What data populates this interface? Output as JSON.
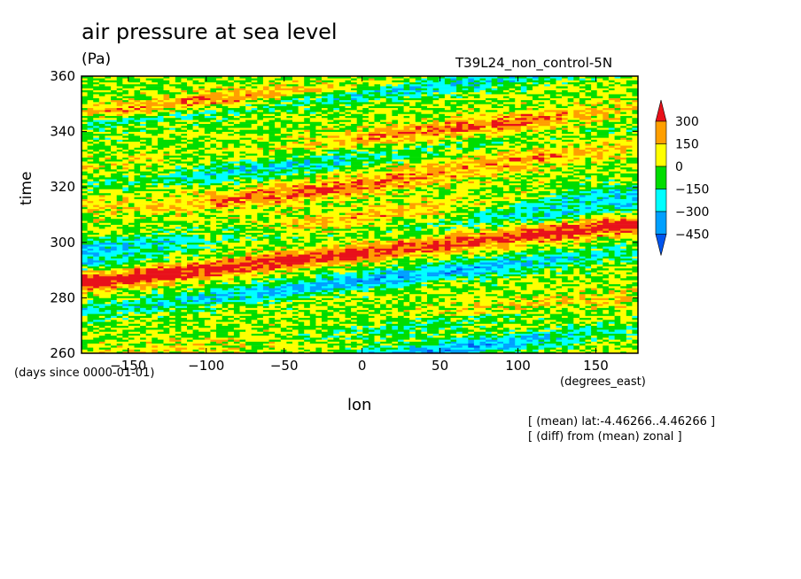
{
  "chart_data": {
    "type": "heatmap",
    "title": "air pressure at sea level",
    "units": "(Pa)",
    "run_label": "T39L24_non_control-5N",
    "xlabel": "lon",
    "xunits": "(degrees_east)",
    "ylabel": "time",
    "yunits": "(days since 0000-01-01)",
    "xlim": [
      -180,
      177
    ],
    "ylim": [
      260,
      360
    ],
    "xticks": [
      -150,
      -100,
      -50,
      0,
      50,
      100,
      150
    ],
    "yticks": [
      260,
      280,
      300,
      320,
      340,
      360
    ],
    "notes": [
      "[ (mean) lat:-4.46266..4.46266 ]",
      "[ (diff) from (mean) zonal ]"
    ],
    "colorbar": {
      "levels": [
        300,
        150,
        0,
        -150,
        -300,
        -450
      ],
      "colors": [
        "#e8111a",
        "#ff9f00",
        "#ffff00",
        "#00dd00",
        "#00ffff",
        "#00a0ff",
        "#0055ee"
      ]
    },
    "anomaly_bands": [
      {
        "time": 350,
        "lon_center": -110,
        "value": 320
      },
      {
        "time": 342,
        "lon_center": 70,
        "value": 310
      },
      {
        "time": 330,
        "lon_center": 100,
        "value": 200
      },
      {
        "time": 318,
        "lon_center": -40,
        "value": 300
      },
      {
        "time": 310,
        "lon_center": 10,
        "value": 200
      },
      {
        "time": 303,
        "lon_center": 110,
        "value": 280
      },
      {
        "time": 294,
        "lon_center": -40,
        "value": 310
      },
      {
        "time": 287,
        "lon_center": -150,
        "value": 250
      },
      {
        "time": 276,
        "lon_center": 100,
        "value": 200
      },
      {
        "time": 265,
        "lon_center": -50,
        "value": 150
      },
      {
        "time": 356,
        "lon_center": 40,
        "value": -250
      },
      {
        "time": 345,
        "lon_center": -150,
        "value": -200
      },
      {
        "time": 327,
        "lon_center": -60,
        "value": -250
      },
      {
        "time": 312,
        "lon_center": 140,
        "value": -220
      },
      {
        "time": 298,
        "lon_center": -170,
        "value": -280
      },
      {
        "time": 290,
        "lon_center": 60,
        "value": -320
      },
      {
        "time": 281,
        "lon_center": -80,
        "value": -250
      },
      {
        "time": 270,
        "lon_center": 30,
        "value": -300
      },
      {
        "time": 262,
        "lon_center": 60,
        "value": -360
      }
    ]
  }
}
